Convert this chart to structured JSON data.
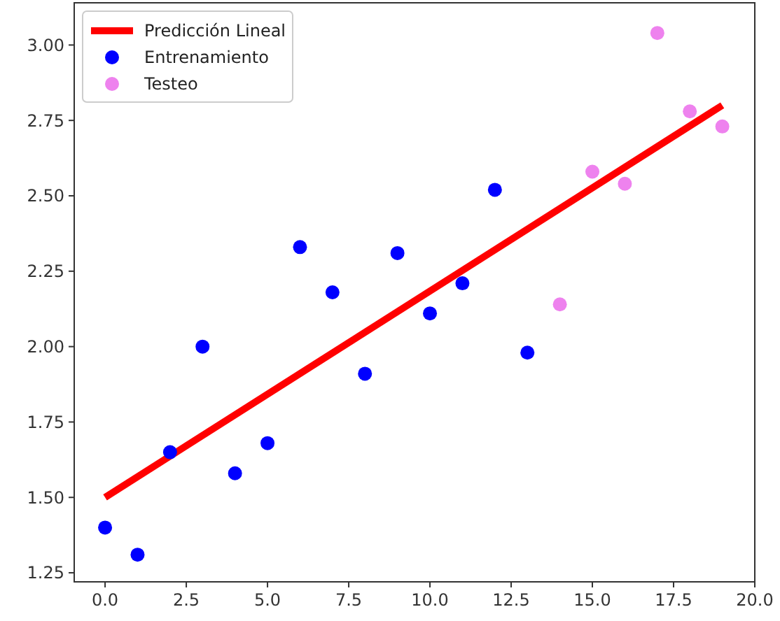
{
  "chart_data": {
    "type": "scatter",
    "xlim": [
      -0.95,
      20
    ],
    "ylim": [
      1.22,
      3.14
    ],
    "xticks": [
      {
        "value": 0,
        "label": "0.0"
      },
      {
        "value": 2.5,
        "label": "2.5"
      },
      {
        "value": 5,
        "label": "5.0"
      },
      {
        "value": 7.5,
        "label": "7.5"
      },
      {
        "value": 10,
        "label": "10.0"
      },
      {
        "value": 12.5,
        "label": "12.5"
      },
      {
        "value": 15,
        "label": "15.0"
      },
      {
        "value": 17.5,
        "label": "17.5"
      },
      {
        "value": 20,
        "label": "20.0"
      }
    ],
    "yticks": [
      {
        "value": 1.25,
        "label": "1.25"
      },
      {
        "value": 1.5,
        "label": "1.50"
      },
      {
        "value": 1.75,
        "label": "1.75"
      },
      {
        "value": 2,
        "label": "2.00"
      },
      {
        "value": 2.25,
        "label": "2.25"
      },
      {
        "value": 2.5,
        "label": "2.50"
      },
      {
        "value": 2.75,
        "label": "2.75"
      },
      {
        "value": 3,
        "label": "3.00"
      }
    ],
    "legend": "top left",
    "grid": false,
    "series": [
      {
        "name": "Predicción Lineal",
        "type": "line",
        "marker": "none",
        "color": "#ff0000",
        "x": [
          0,
          19
        ],
        "values": [
          1.5,
          2.8
        ]
      },
      {
        "name": "Entrenamiento",
        "marker": "circle",
        "color": "#0000ff",
        "x": [
          0,
          1,
          2,
          3,
          4,
          5,
          6,
          7,
          8,
          9,
          10,
          11,
          12,
          13
        ],
        "values": [
          1.4,
          1.31,
          1.65,
          2.0,
          1.58,
          1.68,
          2.33,
          2.18,
          1.91,
          2.31,
          2.11,
          2.21,
          2.52,
          1.98
        ]
      },
      {
        "name": "Testeo",
        "marker": "circle",
        "color": "#ee82ee",
        "x": [
          14,
          15,
          16,
          17,
          18,
          19
        ],
        "values": [
          2.14,
          2.58,
          2.54,
          3.04,
          2.78,
          2.73
        ]
      }
    ]
  }
}
